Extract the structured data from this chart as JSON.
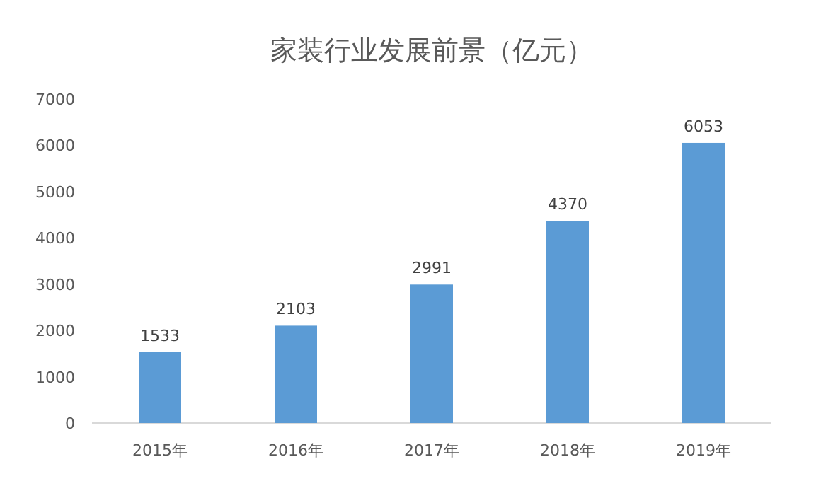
{
  "chart_data": {
    "type": "bar",
    "title": "家装行业发展前景（亿元）",
    "categories": [
      "2015年",
      "2016年",
      "2017年",
      "2018年",
      "2019年"
    ],
    "values": [
      1533,
      2103,
      2991,
      4370,
      6053
    ],
    "color": "#5b9bd5",
    "ylim": [
      0,
      7000
    ],
    "yticks": [
      0,
      1000,
      2000,
      3000,
      4000,
      5000,
      6000,
      7000
    ],
    "data_labels": true,
    "grid": false
  }
}
